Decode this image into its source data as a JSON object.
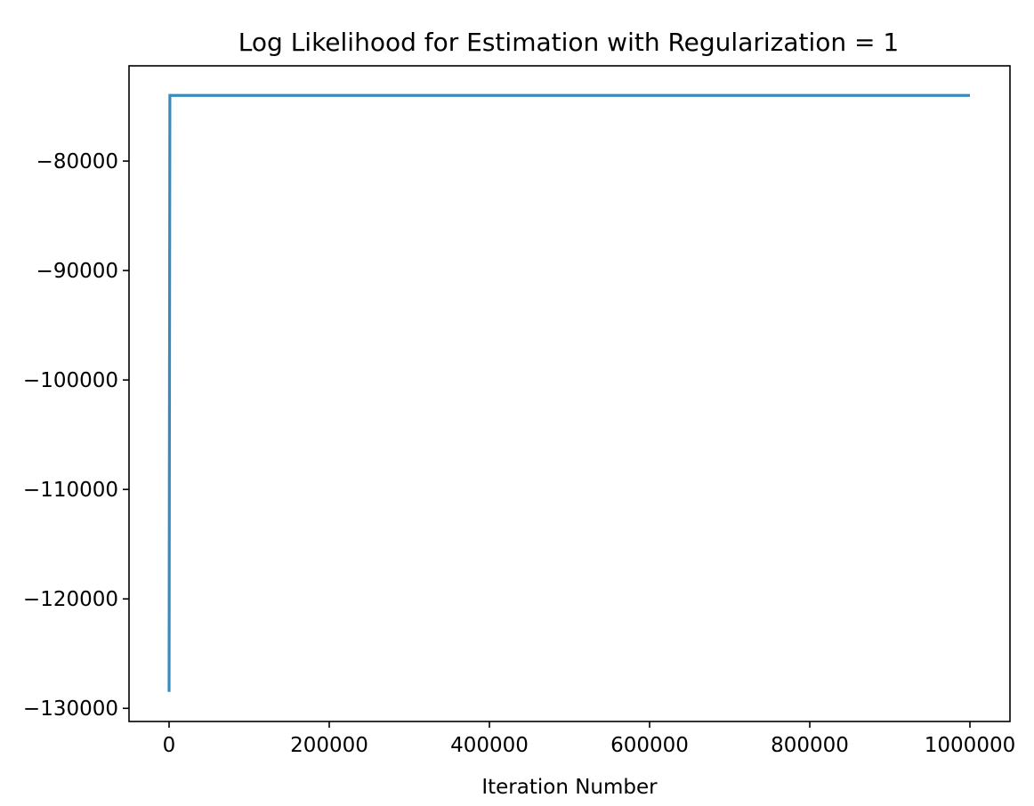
{
  "chart_data": {
    "type": "line",
    "title": "Log Likelihood for Estimation with Regularization = 1",
    "xlabel": "Iteration Number",
    "ylabel": "",
    "xlim": [
      -50000,
      1050000
    ],
    "ylim": [
      -131200,
      -71300
    ],
    "grid": false,
    "xticks": [
      0,
      200000,
      400000,
      600000,
      800000,
      1000000
    ],
    "xtick_labels": [
      "0",
      "200000",
      "400000",
      "600000",
      "800000",
      "1000000"
    ],
    "yticks": [
      -80000,
      -90000,
      -100000,
      -110000,
      -120000,
      -130000
    ],
    "ytick_labels": [
      "−80000",
      "−90000",
      "−100000",
      "−110000",
      "−120000",
      "−130000"
    ],
    "series": [
      {
        "color": "#3a8bbd",
        "x": [
          0,
          1000,
          1000000
        ],
        "y": [
          -128500,
          -74000,
          -74000
        ]
      }
    ]
  }
}
